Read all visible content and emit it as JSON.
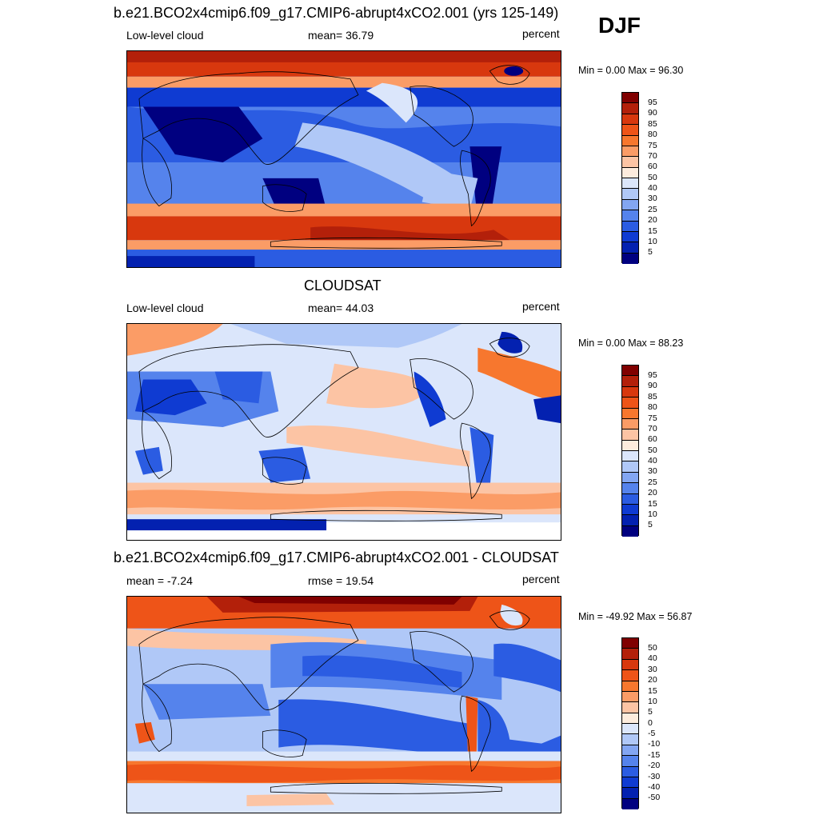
{
  "season": "DJF",
  "panels": [
    {
      "title": "b.e21.BCO2x4cmip6.f09_g17.CMIP6-abrupt4xCO2.001 (yrs 125-149)",
      "left_label": "Low-level cloud",
      "center_label": "mean=  36.79",
      "right_label": "percent",
      "minmax": "Min =    0.00 Max =  96.30",
      "colorbar": {
        "labels": [
          "95",
          "90",
          "85",
          "80",
          "75",
          "70",
          "60",
          "50",
          "40",
          "30",
          "25",
          "20",
          "15",
          "10",
          "5"
        ],
        "colors": [
          "#800000",
          "#b3200a",
          "#d8380e",
          "#ee5418",
          "#f7772e",
          "#fb9c66",
          "#fcc4a4",
          "#fdecdd",
          "#dbe6fb",
          "#b0c8f7",
          "#83a6f2",
          "#5583ec",
          "#2b5ce2",
          "#0f3bd2",
          "#0321b0",
          "#000080"
        ]
      }
    },
    {
      "title": "CLOUDSAT",
      "left_label": "Low-level cloud",
      "center_label": "mean=  44.03",
      "right_label": "percent",
      "minmax": "Min =    0.00 Max =  88.23",
      "colorbar": {
        "labels": [
          "95",
          "90",
          "85",
          "80",
          "75",
          "70",
          "60",
          "50",
          "40",
          "30",
          "25",
          "20",
          "15",
          "10",
          "5"
        ],
        "colors": [
          "#800000",
          "#b3200a",
          "#d8380e",
          "#ee5418",
          "#f7772e",
          "#fb9c66",
          "#fcc4a4",
          "#fdecdd",
          "#dbe6fb",
          "#b0c8f7",
          "#83a6f2",
          "#5583ec",
          "#2b5ce2",
          "#0f3bd2",
          "#0321b0",
          "#000080"
        ]
      }
    },
    {
      "title": "b.e21.BCO2x4cmip6.f09_g17.CMIP6-abrupt4xCO2.001 - CLOUDSAT",
      "left_label": "mean =  -7.24",
      "center_label": "rmse =  19.54",
      "right_label": "percent",
      "minmax": "Min = -49.92 Max =  56.87",
      "colorbar": {
        "labels": [
          "50",
          "40",
          "30",
          "20",
          "15",
          "10",
          "5",
          "0",
          "-5",
          "-10",
          "-15",
          "-20",
          "-30",
          "-40",
          "-50"
        ],
        "colors": [
          "#800000",
          "#b3200a",
          "#d8380e",
          "#ee5418",
          "#f7772e",
          "#fb9c66",
          "#fcc4a4",
          "#fdecdd",
          "#dbe6fb",
          "#b0c8f7",
          "#83a6f2",
          "#5583ec",
          "#2b5ce2",
          "#0f3bd2",
          "#0321b0",
          "#000080"
        ]
      }
    }
  ]
}
